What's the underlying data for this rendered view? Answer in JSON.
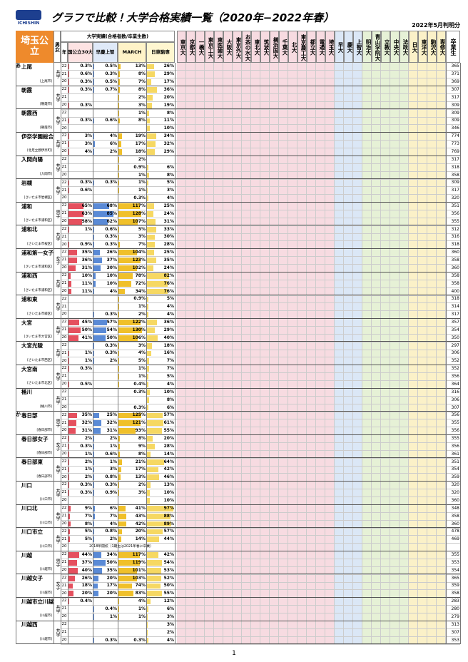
{
  "header": {
    "logo": "ICHISHIN",
    "title": "グラフで比較！大学合格実績一覧（2020年−2022年春）",
    "date_note": "2022年5月判明分"
  },
  "table": {
    "corner": "埼玉公立",
    "gender_head": "男女",
    "group_head": "大学実績(合格者数/卒業生数)",
    "subheads": [
      "年",
      "国公立30大",
      "早慶上智",
      "MARCH",
      "日東駒専"
    ],
    "universities": [
      "東京大",
      "京都大",
      "一橋大",
      "東京工大",
      "東医歯大",
      "大阪大",
      "東京外大",
      "お茶の水大",
      "東北大",
      "筑波大",
      "横浜国大",
      "千葉大",
      "北大",
      "東京農工大",
      "都立大",
      "電通大",
      "埼玉大",
      "早大",
      "慶大",
      "上智大",
      "明治大",
      "青山学院大",
      "立教大",
      "中央大",
      "法政大",
      "日大",
      "東洋大",
      "駒沢大",
      "専修大"
    ],
    "graduates_head": "卒業生",
    "schools": [
      {
        "kana": "あ",
        "name": "上尾",
        "gender": "共学",
        "city": "[上尾市]",
        "rows": [
          [
            "22",
            "0.3%",
            "0.5%",
            "13%",
            "26%",
            "365"
          ],
          [
            "21",
            "0.6%",
            "0.3%",
            "8%",
            "29%",
            "371"
          ],
          [
            "20",
            "0.3%",
            "0.5%",
            "7%",
            "17%",
            "369"
          ]
        ]
      },
      {
        "name": "朝霞",
        "gender": "共学",
        "city": "[朝霞市]",
        "rows": [
          [
            "22",
            "0.3%",
            "0.7%",
            "8%",
            "36%",
            "307"
          ],
          [
            "21",
            null,
            null,
            "2%",
            "20%",
            "317"
          ],
          [
            "20",
            "0.3%",
            null,
            "3%",
            "19%",
            "309"
          ]
        ]
      },
      {
        "name": "朝霞西",
        "gender": "共学",
        "city": "[朝霞市]",
        "rows": [
          [
            "22",
            null,
            null,
            "1%",
            "8%",
            "309"
          ],
          [
            "21",
            "0.3%",
            "0.6%",
            "8%",
            "11%",
            "309"
          ],
          [
            "20",
            null,
            null,
            null,
            "10%",
            "346"
          ]
        ]
      },
      {
        "name": "伊奈学園総合",
        "gender": "共学",
        "city": "[北足立郡伊奈町]",
        "rows": [
          [
            "22",
            "3%",
            "4%",
            "19%",
            "34%",
            "774"
          ],
          [
            "21",
            "3%",
            "6%",
            "17%",
            "32%",
            "773"
          ],
          [
            "20",
            "4%",
            "2%",
            "18%",
            "29%",
            "769"
          ]
        ]
      },
      {
        "name": "入間向陽",
        "gender": "共学",
        "city": "[入間市]",
        "rows": [
          [
            "22",
            null,
            null,
            "2%",
            null,
            "317"
          ],
          [
            "21",
            null,
            null,
            "0.9%",
            "6%",
            "318"
          ],
          [
            "20",
            null,
            null,
            "1%",
            "8%",
            "358"
          ]
        ]
      },
      {
        "name": "岩槻",
        "gender": "共学",
        "city": "[さいたま市岩槻区]",
        "rows": [
          [
            "22",
            "0.3%",
            "0.3%",
            "1%",
            "5%",
            "309"
          ],
          [
            "21",
            "0.6%",
            null,
            "1%",
            "3%",
            "317"
          ],
          [
            "20",
            null,
            null,
            "0.3%",
            "4%",
            "320"
          ]
        ]
      },
      {
        "name": "浦和",
        "gender": "男子",
        "city": "[さいたま市浦和区]",
        "rows": [
          [
            "22",
            "65%",
            "68%",
            "117%",
            "25%",
            "351"
          ],
          [
            "21",
            "63%",
            "85%",
            "128%",
            "24%",
            "356"
          ],
          [
            "20",
            "58%",
            "62%",
            "107%",
            "31%",
            "355"
          ]
        ]
      },
      {
        "name": "浦和北",
        "gender": "共学",
        "city": "[さいたま市桜区]",
        "rows": [
          [
            "22",
            "1%",
            "0.6%",
            "5%",
            "33%",
            "312"
          ],
          [
            "21",
            null,
            "0.3%",
            "3%",
            "30%",
            "316"
          ],
          [
            "20",
            "0.9%",
            "0.3%",
            "7%",
            "28%",
            "318"
          ]
        ]
      },
      {
        "name": "浦和第一女子",
        "gender": "女子",
        "city": "[さいたま市浦和区]",
        "rows": [
          [
            "22",
            "35%",
            "26%",
            "104%",
            "25%",
            "360"
          ],
          [
            "21",
            "36%",
            "37%",
            "123%",
            "35%",
            "358"
          ],
          [
            "20",
            "31%",
            "30%",
            "102%",
            "24%",
            "360"
          ]
        ]
      },
      {
        "name": "浦和西",
        "gender": "共学",
        "city": "[さいたま市浦和区]",
        "rows": [
          [
            "22",
            "10%",
            "10%",
            "78%",
            "82%",
            "358"
          ],
          [
            "21",
            "11%",
            "10%",
            "72%",
            "76%",
            "358"
          ],
          [
            "20",
            "11%",
            "4%",
            "34%",
            "76%",
            "400"
          ]
        ]
      },
      {
        "name": "浦和東",
        "gender": "共学",
        "city": "[さいたま市緑区]",
        "rows": [
          [
            "22",
            null,
            null,
            "0.9%",
            "5%",
            "318"
          ],
          [
            "21",
            null,
            null,
            "1%",
            "4%",
            "314"
          ],
          [
            "20",
            null,
            "0.3%",
            "2%",
            "4%",
            "317"
          ]
        ]
      },
      {
        "name": "大宮",
        "gender": "共学",
        "city": "[さいたま市大宮区]",
        "rows": [
          [
            "22",
            "45%",
            "57%",
            "122%",
            "36%",
            "357"
          ],
          [
            "21",
            "50%",
            "54%",
            "130%",
            "29%",
            "354"
          ],
          [
            "20",
            "41%",
            "50%",
            "106%",
            "40%",
            "350"
          ]
        ]
      },
      {
        "name": "大宮光陵",
        "gender": "共学",
        "city": "[さいたま市西区]",
        "rows": [
          [
            "22",
            null,
            "0.3%",
            "3%",
            "18%",
            "297"
          ],
          [
            "21",
            "1%",
            "0.3%",
            "4%",
            "16%",
            "306"
          ],
          [
            "20",
            "1%",
            "2%",
            "5%",
            "7%",
            "352"
          ]
        ]
      },
      {
        "name": "大宮南",
        "gender": "共学",
        "city": "[さいたま市北区]",
        "rows": [
          [
            "22",
            "0.3%",
            null,
            "1%",
            "7%",
            "352"
          ],
          [
            "21",
            null,
            null,
            "1%",
            "5%",
            "356"
          ],
          [
            "20",
            "0.5%",
            null,
            "0.4%",
            "4%",
            "364"
          ]
        ]
      },
      {
        "name": "桶川",
        "gender": "共学",
        "city": "[桶川市]",
        "rows": [
          [
            "22",
            null,
            null,
            "0.3%",
            "10%",
            "316"
          ],
          [
            "21",
            null,
            null,
            null,
            "8%",
            "306"
          ],
          [
            "20",
            null,
            null,
            "0.3%",
            "6%",
            "307"
          ]
        ]
      },
      {
        "kana": "か",
        "name": "春日部",
        "gender": "男子",
        "city": "[春日部市]",
        "rows": [
          [
            "22",
            "35%",
            "25%",
            "125%",
            "57%",
            "356"
          ],
          [
            "21",
            "32%",
            "32%",
            "121%",
            "61%",
            "355"
          ],
          [
            "20",
            "31%",
            "31%",
            "93%",
            "55%",
            "356"
          ]
        ]
      },
      {
        "name": "春日部女子",
        "gender": "女子",
        "city": "[春日部市]",
        "rows": [
          [
            "22",
            "2%",
            "2%",
            "8%",
            "20%",
            "355"
          ],
          [
            "21",
            "0.3%",
            "1%",
            "9%",
            "28%",
            "356"
          ],
          [
            "20",
            "1%",
            "0.6%",
            "8%",
            "14%",
            "361"
          ]
        ]
      },
      {
        "name": "春日部東",
        "gender": "共学",
        "city": "[春日部市]",
        "rows": [
          [
            "22",
            "2%",
            "1%",
            "21%",
            "64%",
            "351"
          ],
          [
            "21",
            "1%",
            "3%",
            "17%",
            "42%",
            "354"
          ],
          [
            "20",
            "2%",
            "0.8%",
            "13%",
            "46%",
            "359"
          ]
        ]
      },
      {
        "name": "川口",
        "gender": "共学",
        "city": "[川口市]",
        "rows": [
          [
            "22",
            "0.3%",
            "0.3%",
            "2%",
            "13%",
            "320"
          ],
          [
            "21",
            "0.3%",
            "0.9%",
            "3%",
            "10%",
            "320"
          ],
          [
            "20",
            null,
            null,
            null,
            "10%",
            "360"
          ]
        ]
      },
      {
        "name": "川口北",
        "gender": "共学",
        "city": "[川口市]",
        "rows": [
          [
            "22",
            "9%",
            "6%",
            "41%",
            "97%",
            "348"
          ],
          [
            "21",
            "7%",
            "7%",
            "43%",
            "88%",
            "358"
          ],
          [
            "20",
            "8%",
            "4%",
            "42%",
            "89%",
            "360"
          ]
        ]
      },
      {
        "name": "川口市立",
        "gender": "共学",
        "city": "[川口市]",
        "note": "2018年開校（1期生は2021年春に卒業）",
        "rows": [
          [
            "22",
            "5%",
            "0.8%",
            "20%",
            "57%",
            "478"
          ],
          [
            "21",
            "5%",
            "2%",
            "14%",
            "44%",
            "469"
          ],
          [
            "20",
            null,
            null,
            null,
            null,
            null
          ]
        ]
      },
      {
        "name": "川越",
        "gender": "男子",
        "city": "[川越市]",
        "rows": [
          [
            "22",
            "44%",
            "34%",
            "117%",
            "42%",
            "355"
          ],
          [
            "21",
            "37%",
            "50%",
            "119%",
            "54%",
            "353"
          ],
          [
            "20",
            "40%",
            "35%",
            "101%",
            "53%",
            "354"
          ]
        ]
      },
      {
        "name": "川越女子",
        "gender": "女子",
        "city": "[川越市]",
        "rows": [
          [
            "22",
            "26%",
            "20%",
            "103%",
            "52%",
            "365"
          ],
          [
            "21",
            "18%",
            "17%",
            "74%",
            "50%",
            "359"
          ],
          [
            "20",
            "20%",
            "20%",
            "83%",
            "55%",
            "358"
          ]
        ]
      },
      {
        "name": "川越市立川越",
        "gender": "共学",
        "city": "[川越市]",
        "rows": [
          [
            "22",
            "0.4%",
            null,
            "4%",
            "12%",
            "283"
          ],
          [
            "21",
            null,
            "0.4%",
            "1%",
            "6%",
            "280"
          ],
          [
            "20",
            null,
            "1%",
            "1%",
            "3%",
            "279"
          ]
        ]
      },
      {
        "name": "川越西",
        "gender": "共学",
        "city": "[川越市]",
        "rows": [
          [
            "22",
            null,
            null,
            null,
            "3%",
            "313"
          ],
          [
            "21",
            null,
            null,
            null,
            "2%",
            "307"
          ],
          [
            "20",
            null,
            "0.3%",
            "0.3%",
            "4%",
            "353"
          ]
        ]
      }
    ]
  },
  "footer": {
    "page": "1"
  }
}
